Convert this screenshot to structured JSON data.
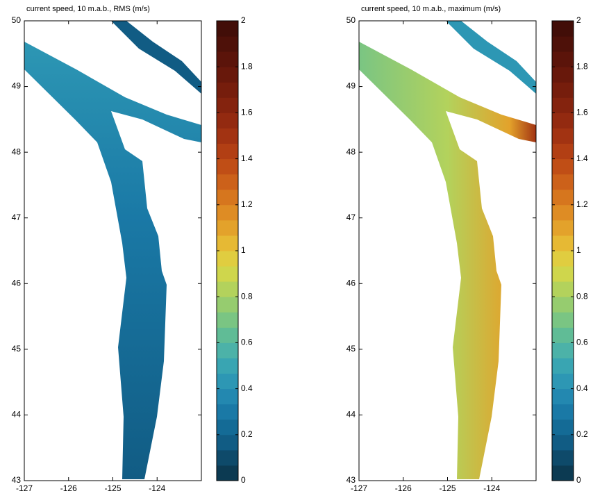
{
  "chart_data": [
    {
      "type": "map",
      "title": "current speed, 10 m.a.b., RMS (m/s)",
      "xlim": [
        -127,
        -123
      ],
      "xticks": [
        -127,
        -126,
        -125,
        -124
      ],
      "ylim": [
        43,
        50
      ],
      "yticks": [
        43,
        44,
        45,
        46,
        47,
        48,
        49,
        50
      ],
      "clim": [
        0,
        2
      ],
      "cticks": [
        0,
        0.2,
        0.4,
        0.6,
        0.8,
        1,
        1.2,
        1.4,
        1.6,
        1.8,
        2
      ],
      "colormap": [
        "#0c3a52",
        "#0e4a6a",
        "#115c84",
        "#146b96",
        "#1a79a6",
        "#2388b0",
        "#2d97b4",
        "#39a5b2",
        "#4cb2a8",
        "#60bc96",
        "#7ac583",
        "#96cc6f",
        "#b3d25c",
        "#cfd64c",
        "#e0cd40",
        "#e6b934",
        "#e3a22b",
        "#de8c24",
        "#d6761e",
        "#cc611a",
        "#c04e16",
        "#b23f14",
        "#a23312",
        "#932a10",
        "#84230e",
        "#761d0c",
        "#68180b",
        "#5b140a",
        "#4e1109",
        "#420e08"
      ]
    },
    {
      "type": "map",
      "title": "current speed, 10 m.a.b., maximum (m/s)",
      "xlim": [
        -127,
        -123
      ],
      "xticks": [
        -127,
        -126,
        -125,
        -124
      ],
      "ylim": [
        43,
        50
      ],
      "yticks": [
        43,
        44,
        45,
        46,
        47,
        48,
        49,
        50
      ],
      "clim": [
        0,
        2
      ],
      "cticks": [
        0,
        0.2,
        0.4,
        0.6,
        0.8,
        1,
        1.2,
        1.4,
        1.6,
        1.8,
        2
      ],
      "colormap": [
        "#0c3a52",
        "#0e4a6a",
        "#115c84",
        "#146b96",
        "#1a79a6",
        "#2388b0",
        "#2d97b4",
        "#39a5b2",
        "#4cb2a8",
        "#60bc96",
        "#7ac583",
        "#96cc6f",
        "#b3d25c",
        "#cfd64c",
        "#e0cd40",
        "#e6b934",
        "#e3a22b",
        "#de8c24",
        "#d6761e",
        "#cc611a",
        "#c04e16",
        "#b23f14",
        "#a23312",
        "#932a10",
        "#84230e",
        "#761d0c",
        "#68180b",
        "#5b140a",
        "#4e1109",
        "#420e08"
      ]
    }
  ]
}
